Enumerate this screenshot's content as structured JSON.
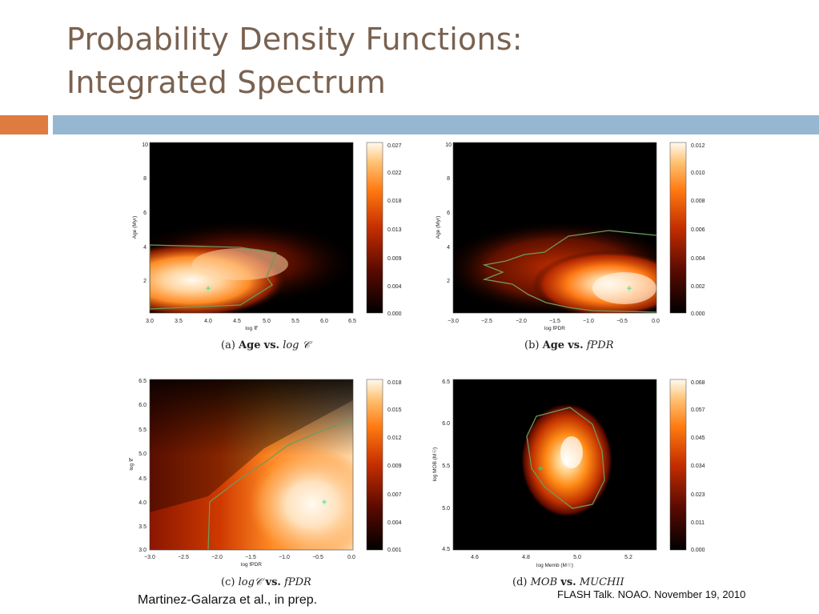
{
  "slide": {
    "title_line1": "Probability Density Functions:",
    "title_line2": "Integrated Spectrum",
    "citation": "Martinez-Galarza et al., in prep.",
    "footer": "FLASH Talk. NOAO. November 19, 2010",
    "colors": {
      "title": "#7a6250",
      "accent_orange": "#de7c40",
      "accent_blue": "#96b7d2",
      "contour": "#6f9a5a",
      "marker": "#33dd88"
    }
  },
  "chart_data": [
    {
      "type": "heatmap",
      "caption_letter": "(a)",
      "caption_lhs": "Age",
      "caption_vs": "vs.",
      "caption_rhs": "log 𝒞",
      "xlabel": "log 𝒞",
      "ylabel": "Age (Myr)",
      "xticks": [
        "3.0",
        "3.5",
        "4.0",
        "4.5",
        "5.0",
        "5.5",
        "6.0",
        "6.5"
      ],
      "yticks": [
        "2",
        "4",
        "6",
        "8",
        "10"
      ],
      "colorbar_ticks": [
        "0.027",
        "0.022",
        "0.018",
        "0.013",
        "0.009",
        "0.004",
        "0.000"
      ],
      "colorbar_range": [
        0.0,
        0.027
      ],
      "best_fit_marker": {
        "x": 4.0,
        "y": 1.5
      }
    },
    {
      "type": "heatmap",
      "caption_letter": "(b)",
      "caption_lhs": "Age",
      "caption_vs": "vs.",
      "caption_rhs": "fPDR",
      "xlabel": "log fPDR",
      "ylabel": "Age (Myr)",
      "xticks": [
        "−3.0",
        "−2.5",
        "−2.0",
        "−1.5",
        "−1.0",
        "−0.5",
        "0.0"
      ],
      "yticks": [
        "2",
        "4",
        "6",
        "8",
        "10"
      ],
      "colorbar_ticks": [
        "0.012",
        "0.010",
        "0.008",
        "0.006",
        "0.004",
        "0.002",
        "0.000"
      ],
      "colorbar_range": [
        0.0,
        0.012
      ],
      "best_fit_marker": {
        "x": -0.4,
        "y": 1.5
      }
    },
    {
      "type": "heatmap",
      "caption_letter": "(c)",
      "caption_lhs": "log𝒞",
      "caption_vs": "vs.",
      "caption_rhs": "fPDR",
      "xlabel": "log fPDR",
      "ylabel": "log 𝒞",
      "xticks": [
        "−3.0",
        "−2.5",
        "−2.0",
        "−1.5",
        "−1.0",
        "−0.5",
        "0.0"
      ],
      "yticks": [
        "3.0",
        "3.5",
        "4.0",
        "4.5",
        "5.0",
        "5.5",
        "6.0",
        "6.5"
      ],
      "colorbar_ticks": [
        "0.018",
        "0.015",
        "0.012",
        "0.009",
        "0.007",
        "0.004",
        "0.001"
      ],
      "colorbar_range": [
        0.001,
        0.018
      ],
      "best_fit_marker": {
        "x": -0.4,
        "y": 4.0
      }
    },
    {
      "type": "heatmap",
      "caption_letter": "(d)",
      "caption_lhs": "MOB",
      "caption_vs": "vs.",
      "caption_rhs": "MUCHII",
      "xlabel": "log Memb (M☉)",
      "ylabel": "log MOB (M☉)",
      "xticks": [
        "4.6",
        "4.8",
        "5.0",
        "5.2"
      ],
      "yticks": [
        "4.5",
        "5.0",
        "5.5",
        "6.0",
        "6.5"
      ],
      "colorbar_ticks": [
        "0.068",
        "0.057",
        "0.045",
        "0.034",
        "0.023",
        "0.011",
        "0.000"
      ],
      "colorbar_range": [
        0.0,
        0.068
      ],
      "best_fit_marker": {
        "x": 4.85,
        "y": 5.45
      }
    }
  ]
}
